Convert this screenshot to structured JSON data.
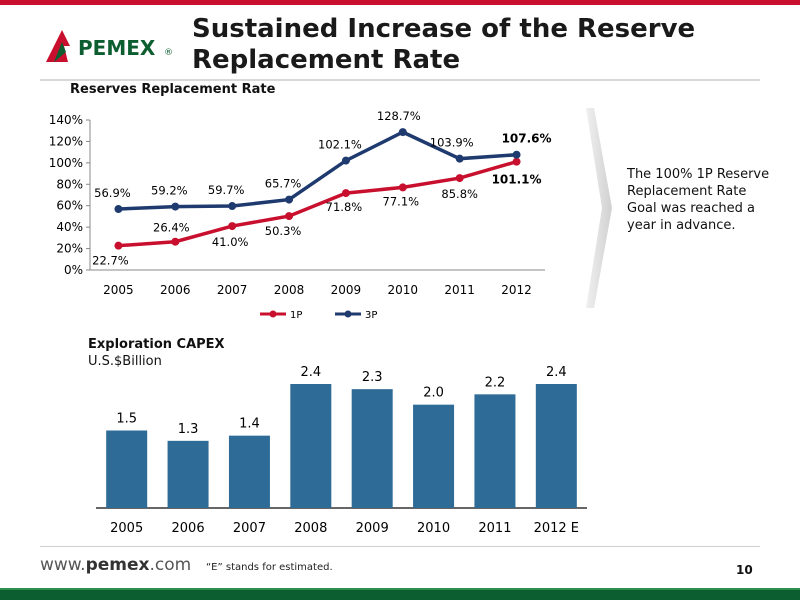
{
  "title": "Sustained Increase of the Reserve Replacement Rate",
  "logo": {
    "text": "PEMEX",
    "registered": "®"
  },
  "note": "The 100% 1P Reserve Replacement Rate Goal was reached a year in advance.",
  "footer": {
    "url_prefix": "www.",
    "url_brand": "pemex",
    "url_suffix": ".com",
    "footnote": "“E” stands for estimated.",
    "page_number": "10"
  },
  "colors": {
    "red": "#c8102e",
    "navy": "#1f3a6e",
    "bar": "#2e6b96",
    "brand_green": "#0c5d2f"
  },
  "chart_data": [
    {
      "type": "line",
      "title": "Reserves Replacement Rate",
      "categories": [
        "2005",
        "2006",
        "2007",
        "2008",
        "2009",
        "2010",
        "2011",
        "2012"
      ],
      "y_ticks": [
        "0%",
        "20%",
        "40%",
        "60%",
        "80%",
        "100%",
        "120%",
        "140%"
      ],
      "ylim": [
        0,
        140
      ],
      "legend_position": "bottom",
      "series": [
        {
          "name": "1P",
          "color": "#c8102e",
          "values": [
            22.7,
            26.4,
            41.0,
            50.3,
            71.8,
            77.1,
            85.8,
            101.1
          ],
          "labels": [
            "22.7%",
            "26.4%",
            "41.0%",
            "50.3%",
            "71.8%",
            "77.1%",
            "85.8%",
            "101.1%"
          ]
        },
        {
          "name": "3P",
          "color": "#1f3a6e",
          "values": [
            56.9,
            59.2,
            59.7,
            65.7,
            102.1,
            128.7,
            103.9,
            107.6
          ],
          "labels": [
            "56.9%",
            "59.2%",
            "59.7%",
            "65.7%",
            "102.1%",
            "128.7%",
            "103.9%",
            "107.6%"
          ]
        }
      ]
    },
    {
      "type": "bar",
      "title": "Exploration CAPEX",
      "subtitle": "U.S.$Billion",
      "categories": [
        "2005",
        "2006",
        "2007",
        "2008",
        "2009",
        "2010",
        "2011",
        "2012 E"
      ],
      "values": [
        1.5,
        1.3,
        1.4,
        2.4,
        2.3,
        2.0,
        2.2,
        2.4
      ],
      "labels": [
        "1.5",
        "1.3",
        "1.4",
        "2.4",
        "2.3",
        "2.0",
        "2.2",
        "2.4"
      ],
      "ylim": [
        0,
        2.4
      ],
      "color": "#2e6b96"
    }
  ]
}
